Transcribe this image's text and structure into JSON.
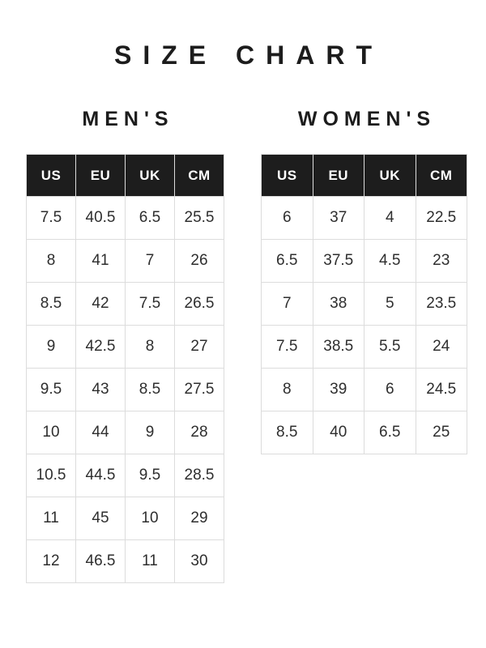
{
  "title": "SIZE CHART",
  "colors": {
    "header_bg": "#1d1d1d",
    "header_text": "#ffffff",
    "body_text": "#2e2e2e",
    "border": "#dcdcdc",
    "title_text": "#1c1c1c",
    "background": "#ffffff"
  },
  "tables": [
    {
      "title": "MEN'S",
      "columns": [
        "US",
        "EU",
        "UK",
        "CM"
      ],
      "rows": [
        [
          "7.5",
          "40.5",
          "6.5",
          "25.5"
        ],
        [
          "8",
          "41",
          "7",
          "26"
        ],
        [
          "8.5",
          "42",
          "7.5",
          "26.5"
        ],
        [
          "9",
          "42.5",
          "8",
          "27"
        ],
        [
          "9.5",
          "43",
          "8.5",
          "27.5"
        ],
        [
          "10",
          "44",
          "9",
          "28"
        ],
        [
          "10.5",
          "44.5",
          "9.5",
          "28.5"
        ],
        [
          "11",
          "45",
          "10",
          "29"
        ],
        [
          "12",
          "46.5",
          "11",
          "30"
        ]
      ]
    },
    {
      "title": "WOMEN'S",
      "columns": [
        "US",
        "EU",
        "UK",
        "CM"
      ],
      "rows": [
        [
          "6",
          "37",
          "4",
          "22.5"
        ],
        [
          "6.5",
          "37.5",
          "4.5",
          "23"
        ],
        [
          "7",
          "38",
          "5",
          "23.5"
        ],
        [
          "7.5",
          "38.5",
          "5.5",
          "24"
        ],
        [
          "8",
          "39",
          "6",
          "24.5"
        ],
        [
          "8.5",
          "40",
          "6.5",
          "25"
        ]
      ]
    }
  ]
}
